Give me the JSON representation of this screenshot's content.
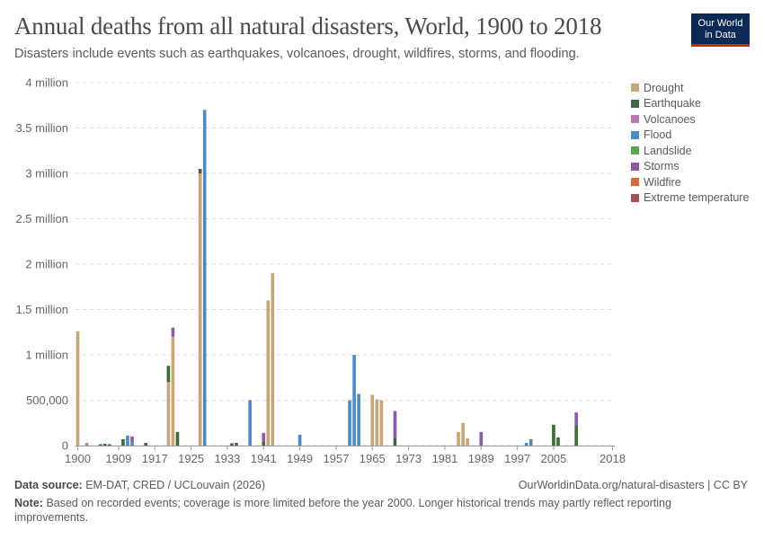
{
  "header": {
    "title": "Annual deaths from all natural disasters, World, 1900 to 2018",
    "subtitle": "Disasters include events such as earthquakes, volcanoes, drought, wildfires, storms, and flooding."
  },
  "logo": {
    "line1": "Our World",
    "line2": "in Data"
  },
  "footer": {
    "source_label": "Data source:",
    "source_text": "EM-DAT, CRED / UCLouvain (2026)",
    "url": "OurWorldinData.org/natural-disasters | CC BY",
    "note_label": "Note:",
    "note_text": "Based on recorded events; coverage is more limited before the year 2000. Longer historical trends may partly reflect reporting improvements."
  },
  "chart_data": {
    "type": "bar",
    "stacked": true,
    "title": "Annual deaths from all natural disasters, World, 1900 to 2018",
    "subtitle": "Disasters include events such as earthquakes, volcanoes, drought, wildfires, storms, and flooding.",
    "xlabel": "",
    "ylabel": "",
    "ylim": [
      0,
      4000000
    ],
    "xlim": [
      1900,
      2018
    ],
    "grid": "horizontal dashed",
    "legend_position": "right",
    "yticks": [
      0,
      500000,
      1000000,
      1500000,
      2000000,
      2500000,
      3000000,
      3500000,
      4000000
    ],
    "ytick_labels": [
      "0",
      "500,000",
      "1 million",
      "1.5 million",
      "2 million",
      "2.5 million",
      "3 million",
      "3.5 million",
      "4 million"
    ],
    "xtick_labels": [
      "1900",
      "1909",
      "1917",
      "1925",
      "1933",
      "1941",
      "1949",
      "1957",
      "1965",
      "1973",
      "1981",
      "1989",
      "1997",
      "2005",
      "2018"
    ],
    "x": [
      1900,
      1901,
      1902,
      1903,
      1904,
      1905,
      1906,
      1907,
      1908,
      1909,
      1910,
      1911,
      1912,
      1913,
      1914,
      1915,
      1916,
      1917,
      1918,
      1919,
      1920,
      1921,
      1922,
      1923,
      1924,
      1925,
      1926,
      1927,
      1928,
      1929,
      1930,
      1931,
      1932,
      1933,
      1934,
      1935,
      1936,
      1937,
      1938,
      1939,
      1940,
      1941,
      1942,
      1943,
      1944,
      1945,
      1946,
      1947,
      1948,
      1949,
      1950,
      1951,
      1952,
      1953,
      1954,
      1955,
      1956,
      1957,
      1958,
      1959,
      1960,
      1961,
      1962,
      1963,
      1964,
      1965,
      1966,
      1967,
      1968,
      1969,
      1970,
      1971,
      1972,
      1973,
      1974,
      1975,
      1976,
      1977,
      1978,
      1979,
      1980,
      1981,
      1982,
      1983,
      1984,
      1985,
      1986,
      1987,
      1988,
      1989,
      1990,
      1991,
      1992,
      1993,
      1994,
      1995,
      1996,
      1997,
      1998,
      1999,
      2000,
      2001,
      2002,
      2003,
      2004,
      2005,
      2006,
      2007,
      2008,
      2009,
      2010,
      2011,
      2012,
      2013,
      2014,
      2015,
      2016,
      2017,
      2018
    ],
    "series": [
      {
        "name": "Drought",
        "color": "#c8a677",
        "values": [
          1260000,
          0,
          0,
          0,
          0,
          0,
          0,
          0,
          0,
          0,
          0,
          0,
          0,
          0,
          0,
          0,
          0,
          0,
          0,
          0,
          700000,
          1200000,
          0,
          0,
          0,
          0,
          0,
          3000000,
          0,
          0,
          0,
          0,
          0,
          0,
          0,
          0,
          0,
          0,
          0,
          0,
          0,
          0,
          1600000,
          1900000,
          0,
          0,
          0,
          0,
          0,
          0,
          0,
          0,
          0,
          0,
          0,
          0,
          0,
          0,
          0,
          0,
          0,
          0,
          0,
          0,
          0,
          560000,
          510000,
          500000,
          0,
          0,
          0,
          0,
          0,
          0,
          0,
          0,
          0,
          0,
          0,
          0,
          0,
          0,
          0,
          0,
          150000,
          250000,
          80000,
          0,
          0,
          0,
          0,
          0,
          0,
          0,
          0,
          0,
          0,
          0,
          0,
          0,
          0,
          0,
          0,
          0,
          0,
          0,
          0,
          0,
          0,
          0,
          0,
          0,
          0,
          0,
          0,
          0,
          0,
          0,
          0
        ]
      },
      {
        "name": "Earthquake",
        "color": "#3e6b3c",
        "values": [
          0,
          0,
          0,
          0,
          0,
          15000,
          20000,
          15000,
          0,
          0,
          70000,
          0,
          0,
          0,
          0,
          30000,
          0,
          0,
          0,
          0,
          180000,
          0,
          150000,
          0,
          0,
          0,
          0,
          50000,
          0,
          0,
          0,
          0,
          0,
          0,
          25000,
          30000,
          0,
          0,
          0,
          0,
          0,
          40000,
          0,
          0,
          0,
          0,
          0,
          0,
          0,
          0,
          0,
          0,
          0,
          0,
          0,
          0,
          0,
          0,
          0,
          0,
          0,
          0,
          0,
          0,
          0,
          0,
          0,
          0,
          0,
          0,
          80000,
          0,
          0,
          0,
          0,
          0,
          0,
          0,
          0,
          0,
          0,
          0,
          0,
          0,
          0,
          0,
          0,
          0,
          0,
          0,
          0,
          0,
          0,
          0,
          0,
          0,
          0,
          0,
          0,
          0,
          0,
          0,
          0,
          0,
          0,
          230000,
          90000,
          0,
          0,
          0,
          225000,
          0,
          0,
          0,
          0,
          0,
          0,
          0,
          0
        ]
      },
      {
        "name": "Volcanoes",
        "color": "#b879b8",
        "values": [
          0,
          0,
          30000,
          0,
          0,
          0,
          0,
          0,
          0,
          0,
          0,
          0,
          0,
          0,
          0,
          0,
          0,
          0,
          0,
          0,
          0,
          0,
          0,
          0,
          0,
          0,
          0,
          0,
          0,
          0,
          0,
          0,
          0,
          0,
          0,
          0,
          0,
          0,
          0,
          0,
          0,
          0,
          0,
          0,
          0,
          0,
          0,
          0,
          0,
          0,
          0,
          0,
          0,
          0,
          0,
          0,
          0,
          0,
          0,
          0,
          0,
          0,
          0,
          0,
          0,
          0,
          0,
          0,
          0,
          0,
          0,
          0,
          0,
          0,
          0,
          0,
          0,
          0,
          0,
          0,
          0,
          0,
          0,
          0,
          0,
          0,
          0,
          0,
          0,
          0,
          0,
          0,
          0,
          0,
          0,
          0,
          0,
          0,
          0,
          0,
          0,
          0,
          0,
          0,
          0,
          0,
          0,
          0,
          0,
          0,
          0,
          0,
          0,
          0,
          0,
          0,
          0,
          0,
          0
        ]
      },
      {
        "name": "Flood",
        "color": "#4d8bc8",
        "values": [
          0,
          0,
          0,
          0,
          0,
          0,
          0,
          0,
          0,
          0,
          0,
          110000,
          40000,
          0,
          0,
          0,
          0,
          0,
          0,
          0,
          0,
          0,
          0,
          0,
          0,
          0,
          0,
          0,
          3700000,
          0,
          0,
          0,
          0,
          0,
          0,
          0,
          0,
          0,
          500000,
          0,
          0,
          0,
          0,
          0,
          0,
          0,
          0,
          0,
          0,
          120000,
          0,
          0,
          0,
          0,
          0,
          0,
          0,
          0,
          0,
          0,
          500000,
          1000000,
          570000,
          0,
          0,
          0,
          0,
          0,
          0,
          0,
          0,
          0,
          0,
          0,
          0,
          0,
          0,
          0,
          0,
          0,
          0,
          0,
          0,
          0,
          0,
          0,
          0,
          0,
          0,
          0,
          0,
          0,
          0,
          0,
          0,
          0,
          0,
          0,
          0,
          30000,
          70000,
          0,
          0,
          0,
          0,
          0,
          0,
          0,
          0,
          0,
          0,
          0,
          0,
          0,
          0,
          0,
          0,
          0,
          0
        ]
      },
      {
        "name": "Landslide",
        "color": "#58a655",
        "values": [
          0,
          0,
          0,
          0,
          0,
          0,
          0,
          0,
          0,
          0,
          0,
          0,
          0,
          0,
          0,
          0,
          0,
          0,
          0,
          0,
          0,
          0,
          0,
          0,
          0,
          0,
          0,
          0,
          0,
          0,
          0,
          0,
          0,
          0,
          0,
          0,
          0,
          0,
          0,
          0,
          0,
          0,
          0,
          0,
          0,
          0,
          0,
          0,
          0,
          0,
          0,
          0,
          0,
          0,
          0,
          0,
          0,
          0,
          0,
          0,
          0,
          0,
          0,
          0,
          0,
          0,
          0,
          0,
          0,
          0,
          0,
          0,
          0,
          0,
          0,
          0,
          0,
          0,
          0,
          0,
          0,
          0,
          0,
          0,
          0,
          0,
          0,
          0,
          0,
          0,
          0,
          0,
          0,
          0,
          0,
          0,
          0,
          0,
          0,
          0,
          0,
          0,
          0,
          0,
          0,
          0,
          0,
          0,
          0,
          0,
          0,
          0,
          0,
          0,
          0,
          0,
          0,
          0,
          0
        ]
      },
      {
        "name": "Storms",
        "color": "#8c5ba5",
        "values": [
          0,
          0,
          0,
          0,
          0,
          0,
          0,
          0,
          0,
          0,
          0,
          0,
          60000,
          0,
          0,
          0,
          0,
          0,
          0,
          0,
          0,
          100000,
          0,
          0,
          0,
          0,
          0,
          0,
          0,
          0,
          0,
          0,
          0,
          0,
          0,
          0,
          0,
          0,
          0,
          0,
          0,
          100000,
          0,
          0,
          0,
          0,
          0,
          0,
          0,
          0,
          0,
          0,
          0,
          0,
          0,
          0,
          0,
          0,
          0,
          0,
          0,
          0,
          0,
          0,
          0,
          0,
          0,
          0,
          0,
          0,
          300000,
          0,
          0,
          0,
          0,
          0,
          0,
          0,
          0,
          0,
          0,
          0,
          0,
          0,
          0,
          0,
          0,
          0,
          0,
          150000,
          0,
          0,
          0,
          0,
          0,
          0,
          0,
          0,
          0,
          0,
          0,
          0,
          0,
          0,
          0,
          0,
          0,
          0,
          0,
          0,
          140000,
          0,
          0,
          0,
          0,
          0,
          0,
          0,
          0
        ]
      },
      {
        "name": "Wildfire",
        "color": "#d8683b",
        "values": [
          0,
          0,
          0,
          0,
          0,
          0,
          0,
          0,
          0,
          0,
          0,
          0,
          0,
          0,
          0,
          0,
          0,
          0,
          0,
          0,
          0,
          0,
          0,
          0,
          0,
          0,
          0,
          0,
          0,
          0,
          0,
          0,
          0,
          0,
          0,
          0,
          0,
          0,
          0,
          0,
          0,
          0,
          0,
          0,
          0,
          0,
          0,
          0,
          0,
          0,
          0,
          0,
          0,
          0,
          0,
          0,
          0,
          0,
          0,
          0,
          0,
          0,
          0,
          0,
          0,
          0,
          0,
          0,
          0,
          0,
          0,
          0,
          0,
          0,
          0,
          0,
          0,
          0,
          0,
          0,
          0,
          0,
          0,
          0,
          0,
          0,
          0,
          0,
          0,
          0,
          0,
          0,
          0,
          0,
          0,
          0,
          0,
          0,
          0,
          0,
          0,
          0,
          0,
          0,
          0,
          0,
          0,
          0,
          0,
          0,
          0,
          0,
          0,
          0,
          0,
          0,
          0,
          0,
          0
        ]
      },
      {
        "name": "Extreme temperature",
        "color": "#a2515a",
        "values": [
          0,
          0,
          0,
          0,
          0,
          0,
          0,
          0,
          0,
          0,
          0,
          0,
          0,
          0,
          0,
          0,
          0,
          0,
          0,
          0,
          0,
          0,
          0,
          0,
          0,
          0,
          0,
          0,
          0,
          0,
          0,
          0,
          0,
          0,
          0,
          0,
          0,
          0,
          0,
          0,
          0,
          0,
          0,
          0,
          0,
          0,
          0,
          0,
          0,
          0,
          0,
          0,
          0,
          0,
          0,
          0,
          0,
          0,
          0,
          0,
          0,
          0,
          0,
          0,
          0,
          0,
          0,
          0,
          0,
          0,
          0,
          0,
          0,
          0,
          0,
          0,
          0,
          0,
          0,
          0,
          0,
          0,
          0,
          0,
          0,
          0,
          0,
          0,
          0,
          0,
          0,
          0,
          0,
          0,
          0,
          0,
          0,
          0,
          0,
          0,
          0,
          0,
          0,
          0,
          0,
          0,
          0,
          0,
          0,
          0,
          0,
          0,
          0,
          0,
          0,
          0,
          0,
          0,
          0
        ]
      }
    ]
  }
}
